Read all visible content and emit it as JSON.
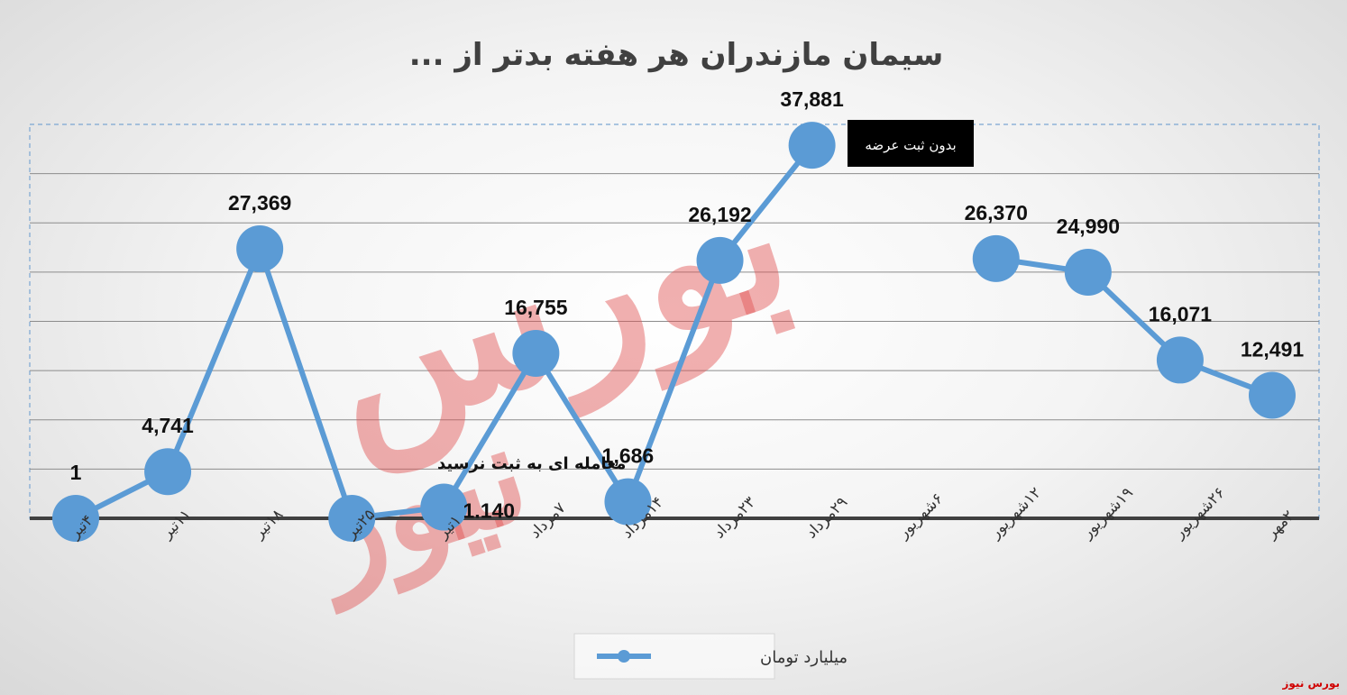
{
  "chart_data": {
    "type": "line",
    "title": "سیمان مازندران هر هفته بدتر از ...",
    "categories": [
      "۴تیر",
      "۱۱تیر",
      "۱۸تیر",
      "۲۵تیر",
      "۱تیر",
      "۷مرداد",
      "۱۴مرداد",
      "۲۳مرداد",
      "۲۹مرداد",
      "۶شهریور",
      "۱۲شهریور",
      "۱۹شهریور",
      "۲۶شهریور",
      "۲مهر"
    ],
    "series": [
      {
        "name": "میلیارد تومان",
        "values": [
          1,
          4741,
          27369,
          0,
          1140,
          16755,
          1686,
          26192,
          37881,
          null,
          26370,
          24990,
          16071,
          12491
        ],
        "labels": [
          "1",
          "4,741",
          "27,369",
          "",
          "1.140",
          "16,755",
          "1,686",
          "26,192",
          "37,881",
          "",
          "26,370",
          "24,990",
          "16,071",
          "12,491"
        ],
        "color": "#5b9bd5"
      }
    ],
    "ylim": [
      0,
      40000
    ],
    "grid": true,
    "legend": "bottom-center",
    "annotations": {
      "no_trade": "معامله ای به ثبت نرسید",
      "no_offer": "بدون ثبت عرضه"
    }
  },
  "watermark": {
    "top": "بورس",
    "bottom": "نیوز"
  },
  "source_credit": "بورس نیوز",
  "colors": {
    "line": "#5b9bd5",
    "axis": "#404040",
    "grid": "#8c8c8c",
    "box": "#000000",
    "credit": "#d00000"
  }
}
